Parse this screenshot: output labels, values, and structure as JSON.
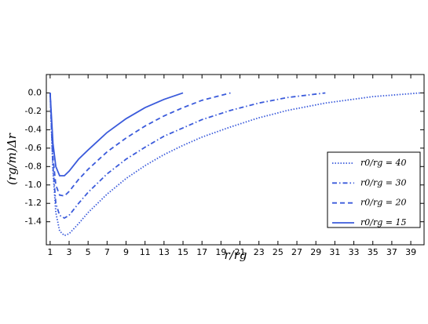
{
  "chart_data": {
    "type": "line",
    "x_label": "r/rg",
    "y_label": "(rg/m)Δr",
    "x": [
      1,
      1.3,
      1.6,
      2,
      2.5,
      3,
      4,
      5,
      7,
      9,
      11,
      13,
      15,
      17,
      20,
      23,
      26,
      30,
      35,
      40
    ],
    "series": [
      {
        "name": "r0/rg = 40",
        "color": "#3b5bdb",
        "linestyle": "dotted",
        "values": [
          0,
          -0.85,
          -1.3,
          -1.5,
          -1.55,
          -1.53,
          -1.42,
          -1.3,
          -1.1,
          -0.93,
          -0.79,
          -0.67,
          -0.57,
          -0.48,
          -0.37,
          -0.27,
          -0.19,
          -0.11,
          -0.04,
          0
        ]
      },
      {
        "name": "r0/rg = 30",
        "color": "#3b5bdb",
        "linestyle": "dashdot",
        "values": [
          0,
          -0.8,
          -1.2,
          -1.33,
          -1.36,
          -1.33,
          -1.2,
          -1.08,
          -0.88,
          -0.72,
          -0.59,
          -0.47,
          -0.38,
          -0.29,
          -0.19,
          -0.11,
          -0.05,
          0,
          null,
          null
        ]
      },
      {
        "name": "r0/rg = 20",
        "color": "#3b5bdb",
        "linestyle": "dashed",
        "values": [
          0,
          -0.7,
          -1.0,
          -1.11,
          -1.12,
          -1.07,
          -0.94,
          -0.83,
          -0.64,
          -0.49,
          -0.36,
          -0.25,
          -0.16,
          -0.08,
          0,
          null,
          null,
          null,
          null,
          null
        ]
      },
      {
        "name": "r0/rg = 15",
        "color": "#3b5bdb",
        "linestyle": "solid",
        "values": [
          0,
          -0.55,
          -0.8,
          -0.9,
          -0.9,
          -0.85,
          -0.72,
          -0.62,
          -0.43,
          -0.28,
          -0.16,
          -0.07,
          0,
          null,
          null,
          null,
          null,
          null,
          null,
          null
        ]
      }
    ],
    "xlim": [
      0.6,
      40.4
    ],
    "ylim": [
      -1.65,
      0.2
    ],
    "xticks": [
      1,
      3,
      5,
      7,
      9,
      11,
      13,
      15,
      17,
      19,
      21,
      23,
      25,
      27,
      29,
      31,
      33,
      35,
      37,
      39
    ],
    "yticks": [
      {
        "value": 0,
        "label": "0.0"
      },
      -0.2,
      -0.4,
      -0.6,
      -0.8,
      {
        "value": -1,
        "label": "-1.0"
      },
      -1.2,
      -1.4
    ],
    "legend": "lower right",
    "grid": false
  }
}
